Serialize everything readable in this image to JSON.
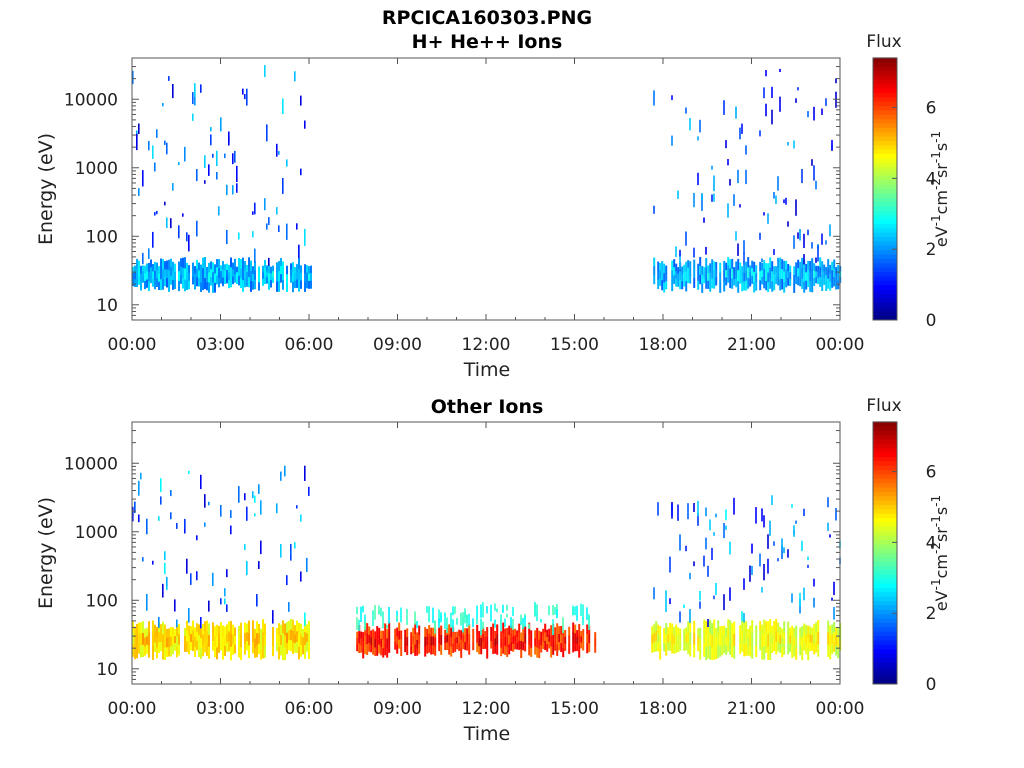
{
  "figure_title": "RPCICA160303.PNG",
  "colorbar_colormap": "jet",
  "chart_data": [
    {
      "type": "heatmap",
      "title": "H+ He++ Ions",
      "xlabel": "Time",
      "ylabel": "Energy (eV)",
      "x_ticks": [
        "00:00",
        "03:00",
        "06:00",
        "09:00",
        "12:00",
        "15:00",
        "18:00",
        "21:00",
        "00:00"
      ],
      "x_range_hours": [
        0,
        24
      ],
      "y_scale": "log",
      "y_range": [
        6,
        40000
      ],
      "y_ticks": [
        {
          "value": 10,
          "label": "10"
        },
        {
          "value": 100,
          "label": "100"
        },
        {
          "value": 1000,
          "label": "1000"
        },
        {
          "value": 10000,
          "label": "10000"
        }
      ],
      "colorbar": {
        "title": "Flux",
        "unit": "eV-1cm-2sr-1s-1",
        "range": [
          0,
          7.4
        ],
        "ticks": [
          "0",
          "2",
          "4",
          "6"
        ]
      },
      "features": [
        {
          "start_hour": 0.0,
          "end_hour": 6.1,
          "band_energy": [
            18,
            42
          ],
          "band_flux": [
            1.0,
            3.0
          ],
          "sparse_max_energy": 30000,
          "sparse_flux": [
            0.5,
            2.6
          ]
        },
        {
          "start_hour": 17.6,
          "end_hour": 24.0,
          "band_energy": [
            18,
            42
          ],
          "band_flux": [
            1.0,
            3.0
          ],
          "sparse_max_energy": 30000,
          "sparse_flux": [
            0.5,
            2.4
          ]
        }
      ]
    },
    {
      "type": "heatmap",
      "title": "Other Ions",
      "xlabel": "Time",
      "ylabel": "Energy (eV)",
      "x_ticks": [
        "00:00",
        "03:00",
        "06:00",
        "09:00",
        "12:00",
        "15:00",
        "18:00",
        "21:00",
        "00:00"
      ],
      "x_range_hours": [
        0,
        24
      ],
      "y_scale": "log",
      "y_range": [
        6,
        40000
      ],
      "y_ticks": [
        {
          "value": 10,
          "label": "10"
        },
        {
          "value": 100,
          "label": "100"
        },
        {
          "value": 1000,
          "label": "1000"
        },
        {
          "value": 10000,
          "label": "10000"
        }
      ],
      "colorbar": {
        "title": "Flux",
        "unit": "eV-1cm-2sr-1s-1",
        "range": [
          0,
          7.4
        ],
        "ticks": [
          "0",
          "2",
          "4",
          "6"
        ]
      },
      "features": [
        {
          "start_hour": 0.0,
          "end_hour": 6.1,
          "band_energy": [
            16,
            45
          ],
          "band_flux": [
            3.8,
            5.4
          ],
          "sparse_max_energy": 8000,
          "sparse_flux": [
            0.6,
            2.8
          ]
        },
        {
          "start_hour": 7.6,
          "end_hour": 15.8,
          "band_energy": [
            17,
            40
          ],
          "band_flux": [
            5.0,
            7.0
          ],
          "sparse_max_energy": 80,
          "sparse_flux": [
            2.6,
            3.4
          ]
        },
        {
          "start_hour": 17.6,
          "end_hour": 24.0,
          "band_energy": [
            16,
            45
          ],
          "band_flux": [
            3.6,
            5.0
          ],
          "sparse_max_energy": 3000,
          "sparse_flux": [
            0.6,
            2.8
          ]
        }
      ]
    }
  ]
}
